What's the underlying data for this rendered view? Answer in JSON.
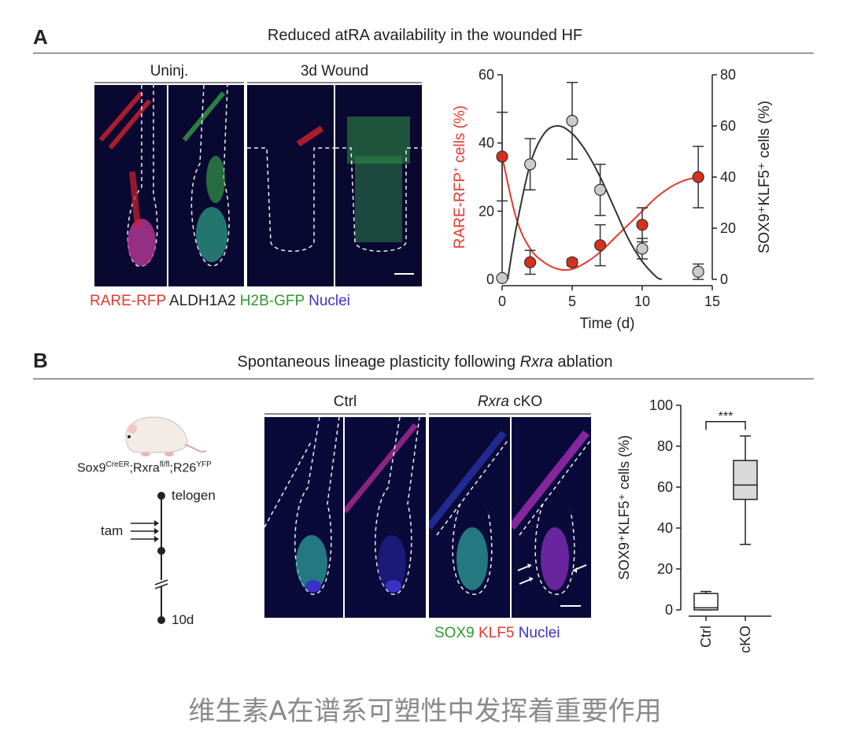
{
  "panel_a": {
    "letter": "A",
    "title": "Reduced atRA availability in the wounded HF",
    "group_uninj": "Uninj.",
    "group_wound": "3d Wound",
    "legend": [
      "RARE-RFP",
      "ALDH1A2",
      "H2B-GFP",
      "Nuclei"
    ],
    "legend_colors": [
      "#e23a2d",
      "#222222",
      "#2e9a2e",
      "#3a32c8"
    ]
  },
  "panel_b": {
    "letter": "B",
    "title_prefix": "Spontaneous lineage plasticity following ",
    "title_italic": "Rxra",
    "title_suffix": " ablation",
    "genotype_base": [
      "Sox9",
      "Rxra",
      "R26"
    ],
    "genotype_sup": [
      "CreER",
      "fl/fl",
      "YFP"
    ],
    "genotype_sep": ";",
    "timeline": {
      "start": "telogen",
      "tam": "tam",
      "end": "10d"
    },
    "group_ctrl": "Ctrl",
    "group_cko_italic": "Rxra",
    "group_cko_suffix": " cKO",
    "legend": [
      "SOX9",
      "KLF5",
      "Nuclei"
    ],
    "legend_colors": [
      "#2e9a2e",
      "#e23a2d",
      "#3a32c8"
    ]
  },
  "chart_data": [
    {
      "type": "line",
      "xlabel": "Time (d)",
      "xlim": [
        0,
        15
      ],
      "xticks": [
        0,
        5,
        10,
        15
      ],
      "left_axis": {
        "label_base": "RARE-RFP",
        "label_sup": "+",
        "label_suffix": " cells (%)",
        "ylim": [
          0,
          60
        ],
        "ticks": [
          0,
          20,
          40,
          60
        ],
        "color": "#e23a2d"
      },
      "right_axis": {
        "label": "SOX9⁺KLF5⁺ cells (%)",
        "ylim": [
          0,
          80
        ],
        "ticks": [
          0,
          20,
          40,
          60,
          80
        ],
        "color": "#222222"
      },
      "series": [
        {
          "axis": "left",
          "color": "#d8301f",
          "x": [
            0,
            2,
            5,
            7,
            10,
            14
          ],
          "y": [
            36,
            5,
            5,
            10,
            16,
            30
          ],
          "err": [
            13,
            3.5,
            1,
            6,
            5,
            9
          ]
        },
        {
          "axis": "right",
          "color": "#cccccc",
          "x": [
            0,
            2,
            5,
            7,
            10,
            14
          ],
          "y": [
            0.5,
            45,
            62,
            35,
            12,
            3
          ],
          "err": [
            0,
            10,
            15,
            10,
            4,
            3
          ]
        }
      ],
      "fit_curves": [
        {
          "axis": "left",
          "color": "#e23a2d",
          "x": [
            0,
            1,
            2,
            3,
            4,
            5,
            6,
            7,
            8,
            9,
            10,
            11,
            12,
            13,
            14
          ],
          "y": [
            36,
            18,
            9,
            5,
            3,
            3,
            5,
            8,
            12,
            16,
            20,
            24,
            27,
            29,
            30
          ]
        },
        {
          "axis": "right",
          "color": "#333333",
          "x": [
            0.4,
            1,
            2,
            3,
            4,
            5,
            6,
            7,
            8,
            9,
            10,
            11,
            11.4
          ],
          "y": [
            0,
            20,
            45,
            57,
            60,
            57,
            50,
            40,
            28,
            16,
            7,
            1,
            0
          ]
        }
      ]
    },
    {
      "type": "box",
      "ylabel": "SOX9⁺KLF5⁺ cells (%)",
      "ylim": [
        0,
        100
      ],
      "yticks": [
        0,
        20,
        40,
        60,
        80,
        100
      ],
      "categories": [
        "Ctrl",
        "cKO"
      ],
      "boxes": [
        {
          "min": 0,
          "q1": 0,
          "median": 1,
          "q3": 8,
          "max": 9,
          "fill": "#ffffff"
        },
        {
          "min": 32,
          "q1": 54,
          "median": 61,
          "q3": 73,
          "max": 85,
          "fill": "#d9d9d9"
        }
      ],
      "significance": "***"
    }
  ],
  "caption": "维生素A在谱系可塑性中发挥着重要作用"
}
